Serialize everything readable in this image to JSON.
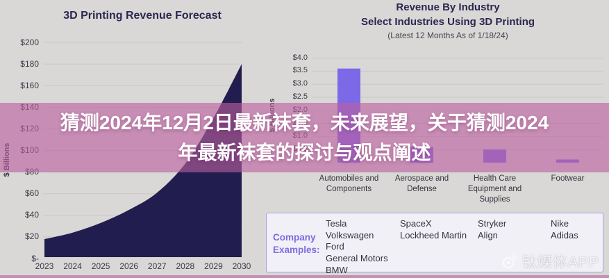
{
  "chart_data": [
    {
      "type": "area",
      "title": "3D Printing Revenue Forecast",
      "ylabel": "$ Billions",
      "categories": [
        "2023",
        "2024",
        "2025",
        "2026",
        "2027",
        "2028",
        "2029",
        "2030"
      ],
      "values": [
        18,
        24,
        33,
        45,
        61,
        88,
        130,
        180
      ],
      "ylim": [
        0,
        200
      ],
      "yticks": [
        {
          "label": "$200",
          "value": 200
        },
        {
          "label": "$180",
          "value": 180
        },
        {
          "label": "$160",
          "value": 160
        },
        {
          "label": "$140",
          "value": 140
        },
        {
          "label": "$120",
          "value": 120
        },
        {
          "label": "$100",
          "value": 100
        },
        {
          "label": "$80",
          "value": 80
        },
        {
          "label": "$60",
          "value": 60
        },
        {
          "label": "$40",
          "value": 40
        },
        {
          "label": "$20",
          "value": 20
        },
        {
          "label": "$-",
          "value": 0
        }
      ],
      "grid": true,
      "legend": "none",
      "color": "#211d4e"
    },
    {
      "type": "bar",
      "title": "Revenue By Industry",
      "subtitle": "Select Industries Using 3D Printing",
      "note": "(Latest 12 Months As of 1/18/24)",
      "ylabel": "$ Billions",
      "categories": [
        "Automobiles and\nComponents",
        "Aerospace and\nDefense",
        "Health Care\nEquipment and\nSupplies",
        "Footwear"
      ],
      "values": [
        3.6,
        0.6,
        0.5,
        0.12
      ],
      "ylim": [
        0,
        4
      ],
      "yticks": [
        {
          "label": "$4.0",
          "value": 4.0
        },
        {
          "label": "$3.5",
          "value": 3.5
        },
        {
          "label": "$3.0",
          "value": 3.0
        },
        {
          "label": "$2.5",
          "value": 2.5
        },
        {
          "label": "$2.0",
          "value": 2.0
        },
        {
          "label": "$1.5",
          "value": 1.5
        },
        {
          "label": "$1.0",
          "value": 1.0
        },
        {
          "label": "$0.5",
          "value": 0.5
        }
      ],
      "grid": true,
      "legend": "none",
      "color": "#7c69e8"
    }
  ],
  "company_box": {
    "label": "Company\nExamples:",
    "columns": [
      [
        "Tesla",
        "Volkswagen",
        "Ford",
        "General Motors",
        "BMW"
      ],
      [
        "SpaceX",
        "Lockheed Martin"
      ],
      [
        "Stryker",
        "Align"
      ],
      [
        "Nike",
        "Adidas"
      ]
    ]
  },
  "banner": {
    "line1": "猜测2024年12月2日最新袜套，未来展望，关于猜测2024",
    "line2": "年最新袜套的探讨与观点阐述",
    "bg": "rgba(187,95,160,0.62)",
    "text_color": "#ffffff"
  },
  "watermark": {
    "text": "钛媒体APP",
    "icon": "weibo-eye-icon"
  },
  "colors": {
    "background": "#d9d8d6",
    "area": "#211d4e",
    "bar": "#7c69e8",
    "grid": "#c9c8c7",
    "axis_text": "#3b3b4a",
    "title_text": "#2a2750",
    "company_label": "#7b6ce4",
    "box_border": "#aaa2e2",
    "box_bg": "#f1f0f6"
  }
}
